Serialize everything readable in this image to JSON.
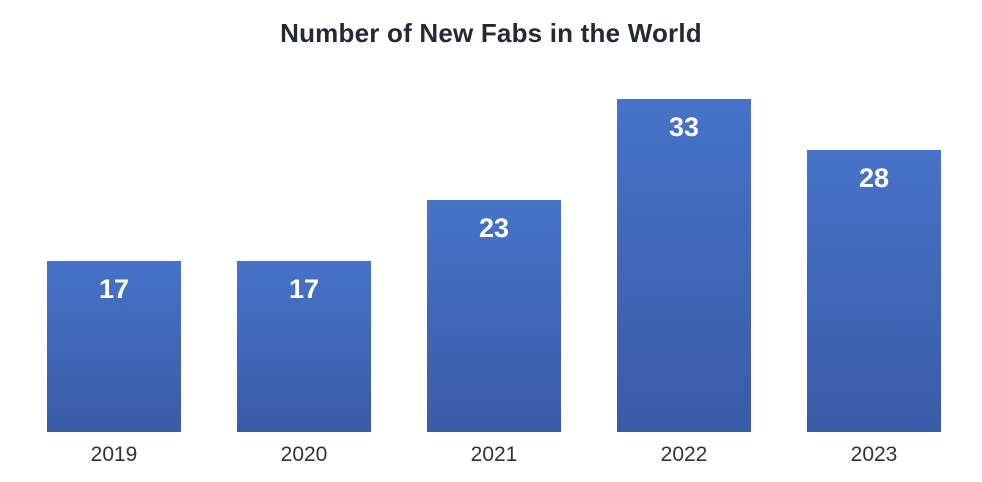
{
  "chart_data": {
    "type": "bar",
    "title": "Number of New Fabs in the World",
    "categories": [
      "2019",
      "2020",
      "2021",
      "2022",
      "2023"
    ],
    "values": [
      17,
      17,
      23,
      33,
      28
    ],
    "xlabel": "",
    "ylabel": "",
    "ylim": [
      0,
      35
    ],
    "grid": false,
    "legend": "none",
    "data_labels": "inside-end",
    "colors": {
      "bar_top": "#4673C8",
      "bar_bottom": "#3A5BA8",
      "data_label": "#FFFFFF",
      "title": "#222A35",
      "tick_label": "#333333",
      "background": "#FFFFFF"
    }
  }
}
